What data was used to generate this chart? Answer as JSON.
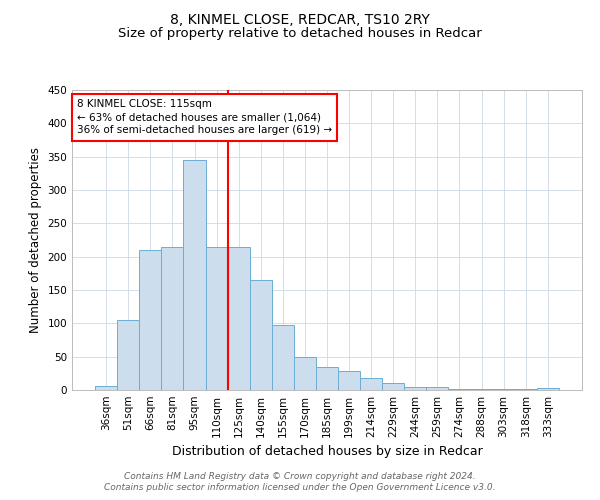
{
  "title1": "8, KINMEL CLOSE, REDCAR, TS10 2RY",
  "title2": "Size of property relative to detached houses in Redcar",
  "xlabel": "Distribution of detached houses by size in Redcar",
  "ylabel": "Number of detached properties",
  "categories": [
    "36sqm",
    "51sqm",
    "66sqm",
    "81sqm",
    "95sqm",
    "110sqm",
    "125sqm",
    "140sqm",
    "155sqm",
    "170sqm",
    "185sqm",
    "199sqm",
    "214sqm",
    "229sqm",
    "244sqm",
    "259sqm",
    "274sqm",
    "288sqm",
    "303sqm",
    "318sqm",
    "333sqm"
  ],
  "values": [
    6,
    105,
    210,
    215,
    345,
    215,
    215,
    165,
    98,
    50,
    35,
    28,
    18,
    10,
    5,
    5,
    2,
    2,
    2,
    2,
    3
  ],
  "bar_color": "#ccdded",
  "bar_edge_color": "#6baed6",
  "vline_x": 5.5,
  "vline_color": "red",
  "annotation_text": "8 KINMEL CLOSE: 115sqm\n← 63% of detached houses are smaller (1,064)\n36% of semi-detached houses are larger (619) →",
  "annotation_box_color": "white",
  "annotation_box_edge": "red",
  "ylim": [
    0,
    450
  ],
  "yticks": [
    0,
    50,
    100,
    150,
    200,
    250,
    300,
    350,
    400,
    450
  ],
  "footnote": "Contains HM Land Registry data © Crown copyright and database right 2024.\nContains public sector information licensed under the Open Government Licence v3.0.",
  "title1_fontsize": 10,
  "title2_fontsize": 9.5,
  "xlabel_fontsize": 9,
  "ylabel_fontsize": 8.5,
  "tick_fontsize": 7.5,
  "footnote_fontsize": 6.5
}
